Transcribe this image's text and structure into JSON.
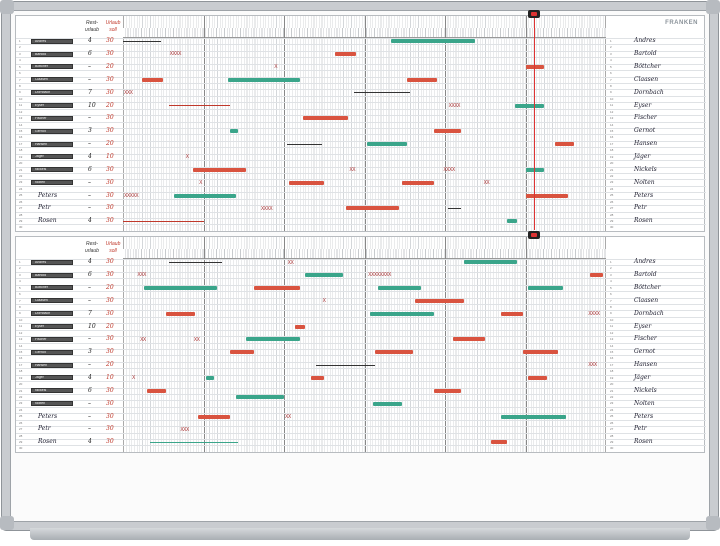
{
  "brand": "FRANKEN",
  "headers": {
    "rest": "Rest-urlaub",
    "urlaub": "Urlaub soll"
  },
  "colors": {
    "red": "#d9533f",
    "green": "#3aa58a",
    "line": "#333333",
    "redline": "#c0392b"
  },
  "days_in_view": 180,
  "employees": [
    {
      "name": "Andres",
      "rest": "4",
      "urlaub": "30",
      "printed": true
    },
    {
      "name": "Bartold",
      "rest": "6",
      "urlaub": "30",
      "printed": true
    },
    {
      "name": "Böttcher",
      "rest": "–",
      "urlaub": "20",
      "printed": true
    },
    {
      "name": "Claasen",
      "rest": "–",
      "urlaub": "30",
      "printed": true
    },
    {
      "name": "Dornbach",
      "rest": "7",
      "urlaub": "30",
      "printed": true
    },
    {
      "name": "Eyser",
      "rest": "10",
      "urlaub": "20",
      "printed": true
    },
    {
      "name": "Fischer",
      "rest": "–",
      "urlaub": "30",
      "printed": true
    },
    {
      "name": "Gernot",
      "rest": "3",
      "urlaub": "30",
      "printed": true
    },
    {
      "name": "Hansen",
      "rest": "–",
      "urlaub": "20",
      "printed": true
    },
    {
      "name": "Jäger",
      "rest": "4",
      "urlaub": "10",
      "printed": true
    },
    {
      "name": "Nickels",
      "rest": "6",
      "urlaub": "30",
      "printed": true
    },
    {
      "name": "Nolten",
      "rest": "–",
      "urlaub": "30",
      "printed": true
    },
    {
      "name": "Peters",
      "rest": "–",
      "urlaub": "30",
      "printed": false
    },
    {
      "name": "Petr",
      "rest": "–",
      "urlaub": "30",
      "printed": false
    },
    {
      "name": "Rosen",
      "rest": "4",
      "urlaub": "30",
      "printed": false
    }
  ],
  "panels": [
    {
      "marks": [
        [
          0,
          100,
          131,
          "green"
        ],
        [
          0,
          0,
          14,
          "line"
        ],
        [
          2,
          79,
          87,
          "red"
        ],
        [
          2,
          17,
          17,
          "XXXX"
        ],
        [
          4,
          150,
          157,
          "red"
        ],
        [
          4,
          56,
          56,
          "X"
        ],
        [
          6,
          7,
          15,
          "red"
        ],
        [
          6,
          39,
          66,
          "green"
        ],
        [
          6,
          106,
          117,
          "red"
        ],
        [
          8,
          0,
          0,
          "XXX"
        ],
        [
          8,
          86,
          107,
          "line"
        ],
        [
          10,
          17,
          40,
          "redline"
        ],
        [
          10,
          121,
          121,
          "XXXX"
        ],
        [
          10,
          146,
          157,
          "green"
        ],
        [
          12,
          67,
          84,
          "red"
        ],
        [
          14,
          40,
          43,
          "green"
        ],
        [
          14,
          116,
          126,
          "red"
        ],
        [
          16,
          61,
          74,
          "line"
        ],
        [
          16,
          91,
          106,
          "green"
        ],
        [
          16,
          161,
          168,
          "red"
        ],
        [
          18,
          23,
          23,
          "X"
        ],
        [
          20,
          26,
          46,
          "red"
        ],
        [
          20,
          84,
          84,
          "XX"
        ],
        [
          20,
          119,
          119,
          "XXXX"
        ],
        [
          20,
          150,
          157,
          "green"
        ],
        [
          22,
          28,
          28,
          "X"
        ],
        [
          22,
          62,
          75,
          "red"
        ],
        [
          22,
          104,
          116,
          "red"
        ],
        [
          22,
          134,
          134,
          "XX"
        ],
        [
          24,
          0,
          0,
          "XXXXX"
        ],
        [
          24,
          19,
          42,
          "green"
        ],
        [
          24,
          150,
          166,
          "red"
        ],
        [
          26,
          51,
          51,
          "XXXX"
        ],
        [
          26,
          83,
          103,
          "red"
        ],
        [
          26,
          121,
          126,
          "line"
        ],
        [
          28,
          0,
          30,
          "redline"
        ],
        [
          28,
          143,
          147,
          "green"
        ]
      ]
    },
    {
      "marks": [
        [
          0,
          17,
          37,
          "line"
        ],
        [
          0,
          61,
          61,
          "XX"
        ],
        [
          0,
          127,
          147,
          "green"
        ],
        [
          2,
          5,
          5,
          "XXX"
        ],
        [
          2,
          68,
          82,
          "green"
        ],
        [
          2,
          91,
          91,
          "XXXXXXXX"
        ],
        [
          2,
          174,
          179,
          "red"
        ],
        [
          4,
          8,
          35,
          "green"
        ],
        [
          4,
          49,
          66,
          "red"
        ],
        [
          4,
          95,
          111,
          "green"
        ],
        [
          4,
          151,
          164,
          "green"
        ],
        [
          6,
          74,
          74,
          "X"
        ],
        [
          6,
          109,
          127,
          "red"
        ],
        [
          8,
          16,
          27,
          "red"
        ],
        [
          8,
          92,
          116,
          "green"
        ],
        [
          8,
          141,
          149,
          "red"
        ],
        [
          8,
          173,
          173,
          "XXXX"
        ],
        [
          10,
          64,
          68,
          "red"
        ],
        [
          12,
          6,
          6,
          "XX"
        ],
        [
          12,
          26,
          26,
          "XX"
        ],
        [
          12,
          46,
          66,
          "green"
        ],
        [
          12,
          123,
          135,
          "red"
        ],
        [
          14,
          40,
          49,
          "red"
        ],
        [
          14,
          94,
          108,
          "red"
        ],
        [
          14,
          149,
          162,
          "red"
        ],
        [
          16,
          72,
          94,
          "line"
        ],
        [
          16,
          173,
          173,
          "XXX"
        ],
        [
          18,
          3,
          3,
          "X"
        ],
        [
          18,
          31,
          34,
          "green"
        ],
        [
          18,
          70,
          75,
          "red"
        ],
        [
          18,
          151,
          158,
          "red"
        ],
        [
          20,
          9,
          16,
          "red"
        ],
        [
          20,
          116,
          126,
          "red"
        ],
        [
          21,
          42,
          60,
          "green"
        ],
        [
          22,
          93,
          104,
          "green"
        ],
        [
          24,
          28,
          40,
          "red"
        ],
        [
          24,
          60,
          60,
          "XX"
        ],
        [
          24,
          141,
          165,
          "green"
        ],
        [
          26,
          21,
          21,
          "XXX"
        ],
        [
          28,
          10,
          43,
          "greenline"
        ],
        [
          28,
          137,
          143,
          "red"
        ]
      ]
    }
  ]
}
